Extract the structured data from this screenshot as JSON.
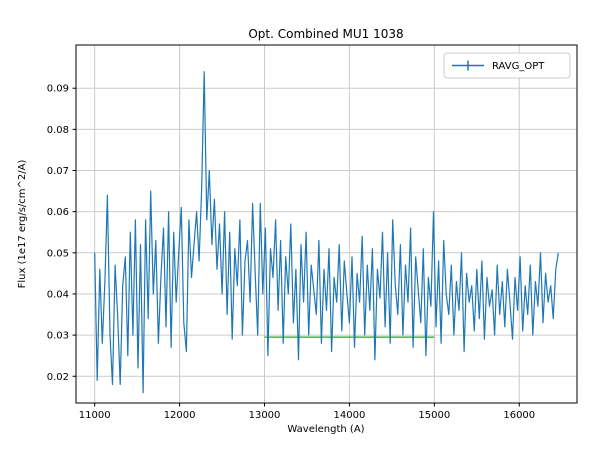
{
  "figure": {
    "background": "#ffffff"
  },
  "chart_data": {
    "type": "line",
    "title": "Opt. Combined MU1 1038",
    "xlabel": "Wavelength (A)",
    "ylabel": "Flux (1e17 erg/s/cm^2/A)",
    "grid": true,
    "xlim": [
      10780,
      16680
    ],
    "ylim": [
      0.0135,
      0.1005
    ],
    "xtick_values": [
      11000,
      12000,
      13000,
      14000,
      15000,
      16000
    ],
    "xtick_labels": [
      "11000",
      "12000",
      "13000",
      "14000",
      "15000",
      "16000"
    ],
    "ytick_values": [
      0.02,
      0.03,
      0.04,
      0.05,
      0.06,
      0.07,
      0.08,
      0.09
    ],
    "ytick_labels": [
      "0.02",
      "0.03",
      "0.04",
      "0.05",
      "0.06",
      "0.07",
      "0.08",
      "0.09"
    ],
    "legend": {
      "position": "upper right",
      "entries": [
        {
          "label": "RAVG_OPT",
          "color": "#1f77b4",
          "marker": "errorbar-line"
        }
      ]
    },
    "series": [
      {
        "name": "RAVG_OPT",
        "color": "#1f77b4",
        "x_start": 11000,
        "x_step": 30,
        "y": [
          0.05,
          0.019,
          0.046,
          0.028,
          0.043,
          0.064,
          0.03,
          0.018,
          0.047,
          0.035,
          0.018,
          0.042,
          0.049,
          0.025,
          0.055,
          0.03,
          0.058,
          0.022,
          0.052,
          0.016,
          0.058,
          0.034,
          0.065,
          0.04,
          0.053,
          0.028,
          0.044,
          0.056,
          0.032,
          0.06,
          0.027,
          0.055,
          0.038,
          0.05,
          0.061,
          0.033,
          0.026,
          0.058,
          0.044,
          0.052,
          0.06,
          0.048,
          0.066,
          0.094,
          0.058,
          0.07,
          0.052,
          0.063,
          0.046,
          0.057,
          0.04,
          0.06,
          0.035,
          0.055,
          0.029,
          0.051,
          0.042,
          0.058,
          0.03,
          0.048,
          0.053,
          0.038,
          0.062,
          0.045,
          0.03,
          0.062,
          0.04,
          0.056,
          0.025,
          0.051,
          0.044,
          0.058,
          0.036,
          0.053,
          0.028,
          0.049,
          0.04,
          0.057,
          0.033,
          0.046,
          0.024,
          0.052,
          0.038,
          0.055,
          0.03,
          0.047,
          0.041,
          0.035,
          0.053,
          0.028,
          0.046,
          0.036,
          0.051,
          0.026,
          0.044,
          0.038,
          0.052,
          0.031,
          0.048,
          0.04,
          0.033,
          0.049,
          0.027,
          0.045,
          0.038,
          0.054,
          0.03,
          0.047,
          0.036,
          0.051,
          0.024,
          0.046,
          0.039,
          0.055,
          0.032,
          0.05,
          0.028,
          0.058,
          0.042,
          0.035,
          0.052,
          0.03,
          0.047,
          0.038,
          0.056,
          0.027,
          0.049,
          0.041,
          0.033,
          0.051,
          0.025,
          0.044,
          0.037,
          0.06,
          0.032,
          0.048,
          0.028,
          0.053,
          0.04,
          0.035,
          0.047,
          0.03,
          0.043,
          0.036,
          0.05,
          0.026,
          0.045,
          0.038,
          0.042,
          0.031,
          0.046,
          0.034,
          0.048,
          0.029,
          0.044,
          0.037,
          0.041,
          0.03,
          0.047,
          0.035,
          0.043,
          0.032,
          0.046,
          0.038,
          0.029,
          0.044,
          0.036,
          0.049,
          0.031,
          0.042,
          0.035,
          0.047,
          0.03,
          0.043,
          0.037,
          0.05,
          0.033,
          0.045,
          0.038,
          0.042,
          0.034,
          0.046,
          0.05
        ]
      }
    ],
    "annotations": [
      {
        "type": "hline-segment",
        "y": 0.0295,
        "x_start": 13000,
        "x_end": 15000,
        "color": "#2ca02c"
      }
    ]
  }
}
